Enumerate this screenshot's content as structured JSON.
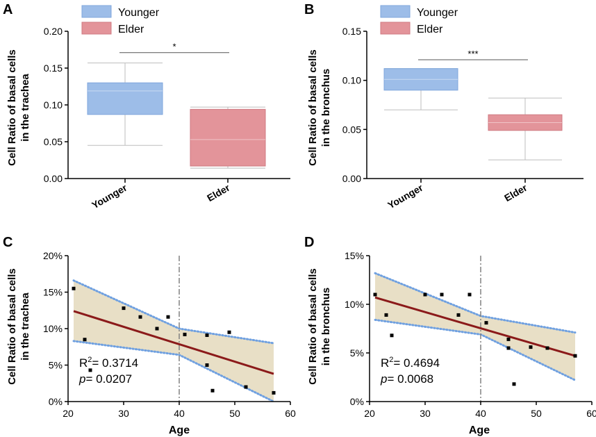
{
  "colors": {
    "younger": "#9dbde8",
    "younger_stroke": "#7fa6dc",
    "elder": "#e3949a",
    "elder_stroke": "#cf7a82",
    "band": "#e8dfc6",
    "band_edge": "#6fa0e0",
    "fit": "#8b1a1a",
    "whisker": "#bdbdbd",
    "axis": "#000000",
    "guide": "#808080"
  },
  "chart_data": [
    {
      "panel": "A",
      "type": "box",
      "ylabel": "Cell Ratio of basal cells in the trachea",
      "ylabel_lines": [
        "Cell Ratio of basal cells",
        "in the trachea"
      ],
      "ylim": [
        0,
        0.2
      ],
      "yticks": [
        "0.00",
        "0.05",
        "0.10",
        "0.15",
        "0.20"
      ],
      "legend": [
        "Younger",
        "Elder"
      ],
      "categories": [
        "Younger",
        "Elder"
      ],
      "boxes": [
        {
          "name": "Younger",
          "min": 0.045,
          "q1": 0.087,
          "median": 0.119,
          "q3": 0.13,
          "max": 0.157
        },
        {
          "name": "Elder",
          "min": 0.014,
          "q1": 0.017,
          "median": 0.053,
          "q3": 0.094,
          "max": 0.097
        }
      ],
      "significance": "*",
      "significance_y": 0.171
    },
    {
      "panel": "B",
      "type": "box",
      "ylabel": "Cell Ratio of basal cells in the bronchus",
      "ylabel_lines": [
        "Cell Ratio of basal cells",
        "in the bronchus"
      ],
      "ylim": [
        0,
        0.15
      ],
      "yticks": [
        "0.00",
        "0.05",
        "0.10",
        "0.15"
      ],
      "legend": [
        "Younger",
        "Elder"
      ],
      "categories": [
        "Younger",
        "Elder"
      ],
      "boxes": [
        {
          "name": "Younger",
          "min": 0.07,
          "q1": 0.09,
          "median": 0.101,
          "q3": 0.112,
          "max": 0.112
        },
        {
          "name": "Elder",
          "min": 0.019,
          "q1": 0.049,
          "median": 0.057,
          "q3": 0.065,
          "max": 0.082
        },
        {
          "name": "_",
          "min": 0,
          "q1": 0,
          "median": 0,
          "q3": 0,
          "max": 0
        }
      ],
      "significance": "***",
      "significance_y": 0.121
    },
    {
      "panel": "C",
      "type": "scatter",
      "xlabel": "Age",
      "ylabel": "Cell Ratio of basal cells in the trachea",
      "ylabel_lines": [
        "Cell Ratio of basal cells",
        "in the trachea"
      ],
      "xlim": [
        20,
        60
      ],
      "ylim": [
        0,
        20
      ],
      "xticks": [
        "20",
        "30",
        "40",
        "50",
        "60"
      ],
      "yticks": [
        "0%",
        "5%",
        "10%",
        "15%",
        "20%"
      ],
      "cutoff_age": 40,
      "points": [
        {
          "x": 21,
          "y": 15.5
        },
        {
          "x": 23,
          "y": 8.5
        },
        {
          "x": 24,
          "y": 4.3
        },
        {
          "x": 30,
          "y": 12.8
        },
        {
          "x": 33,
          "y": 11.6
        },
        {
          "x": 36,
          "y": 10.0
        },
        {
          "x": 38,
          "y": 11.6
        },
        {
          "x": 41,
          "y": 9.2
        },
        {
          "x": 45,
          "y": 9.1
        },
        {
          "x": 45,
          "y": 5.0
        },
        {
          "x": 46,
          "y": 1.5
        },
        {
          "x": 49,
          "y": 9.5
        },
        {
          "x": 52,
          "y": 2.0
        },
        {
          "x": 57,
          "y": 1.2
        }
      ],
      "fit": {
        "x": [
          21,
          57
        ],
        "y": [
          12.4,
          3.8
        ]
      },
      "ci_upper": {
        "x": [
          21,
          40,
          57
        ],
        "y": [
          16.6,
          10.0,
          8.0
        ]
      },
      "ci_lower": {
        "x": [
          21,
          40,
          57
        ],
        "y": [
          8.3,
          6.4,
          0.0
        ]
      },
      "r2_label": "R",
      "r2_exp": "2",
      "r2_value": "= 0.3714",
      "p_label": "p",
      "p_value": "= 0.0207"
    },
    {
      "panel": "D",
      "type": "scatter",
      "xlabel": "Age",
      "ylabel": "Cell Ratio of basal cells in the bronchus",
      "ylabel_lines": [
        "Cell Ratio of basal cells",
        "in the bronchus"
      ],
      "xlim": [
        20,
        60
      ],
      "ylim": [
        0,
        15
      ],
      "xticks": [
        "20",
        "30",
        "40",
        "50",
        "60"
      ],
      "yticks": [
        "0%",
        "5%",
        "10%",
        "15%"
      ],
      "cutoff_age": 40,
      "points": [
        {
          "x": 21,
          "y": 11.0
        },
        {
          "x": 23,
          "y": 8.9
        },
        {
          "x": 24,
          "y": 6.8
        },
        {
          "x": 30,
          "y": 11.0
        },
        {
          "x": 33,
          "y": 11.0
        },
        {
          "x": 36,
          "y": 8.9
        },
        {
          "x": 38,
          "y": 11.0
        },
        {
          "x": 41,
          "y": 8.1
        },
        {
          "x": 45,
          "y": 6.4
        },
        {
          "x": 45,
          "y": 5.5
        },
        {
          "x": 46,
          "y": 1.8
        },
        {
          "x": 49,
          "y": 5.6
        },
        {
          "x": 52,
          "y": 5.5
        },
        {
          "x": 57,
          "y": 4.7
        }
      ],
      "fit": {
        "x": [
          21,
          57
        ],
        "y": [
          10.7,
          4.7
        ]
      },
      "ci_upper": {
        "x": [
          21,
          40,
          57
        ],
        "y": [
          13.2,
          8.8,
          7.1
        ]
      },
      "ci_lower": {
        "x": [
          21,
          40,
          57
        ],
        "y": [
          8.4,
          6.9,
          2.2
        ]
      },
      "r2_label": "R",
      "r2_exp": "2",
      "r2_value": "= 0.4694",
      "p_label": "p",
      "p_value": "= 0.0068"
    }
  ]
}
